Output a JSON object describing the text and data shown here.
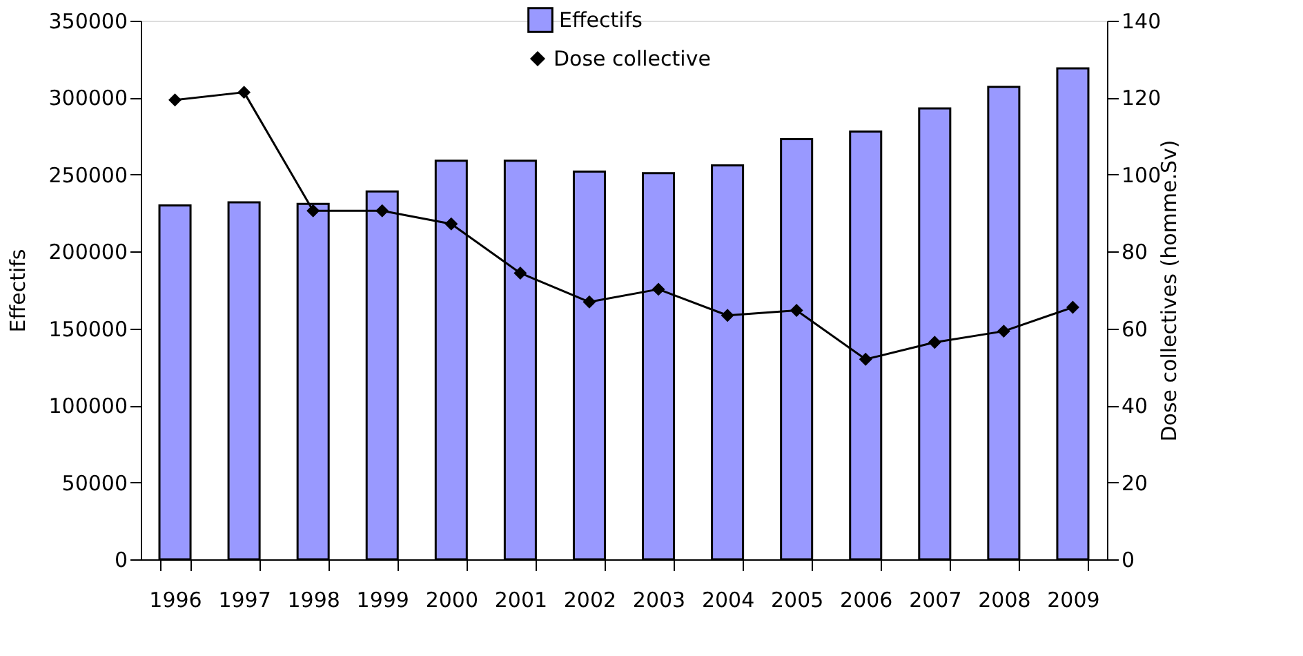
{
  "chart_data": {
    "type": "bar",
    "categories": [
      "1996",
      "1997",
      "1998",
      "1999",
      "2000",
      "2001",
      "2002",
      "2003",
      "2004",
      "2005",
      "2006",
      "2007",
      "2008",
      "2009"
    ],
    "series": [
      {
        "name": "Effectifs",
        "color": "#9999ff",
        "values": [
          230000,
          232000,
          231000,
          239000,
          259000,
          259000,
          252000,
          251000,
          256000,
          273000,
          278000,
          293000,
          307000,
          319000
        ]
      },
      {
        "name": "Dose collective",
        "type": "line",
        "axis": "y2",
        "color": "#000000",
        "marker": "diamond",
        "values": [
          119.4,
          121.4,
          90.6,
          90.6,
          87.2,
          74.4,
          66.9,
          70.2,
          63.4,
          64.7,
          52.0,
          56.4,
          59.3,
          65.5
        ]
      }
    ],
    "ylabel": "Effectifs",
    "y2label": "Dose collectives (homme.Sv)",
    "ylim": [
      0,
      350000
    ],
    "yticks": [
      0,
      50000,
      100000,
      150000,
      200000,
      250000,
      300000,
      350000
    ],
    "y2lim": [
      0,
      140
    ],
    "y2ticks": [
      0,
      20,
      40,
      60,
      80,
      100,
      120,
      140
    ],
    "grid": false,
    "legend": "top"
  }
}
